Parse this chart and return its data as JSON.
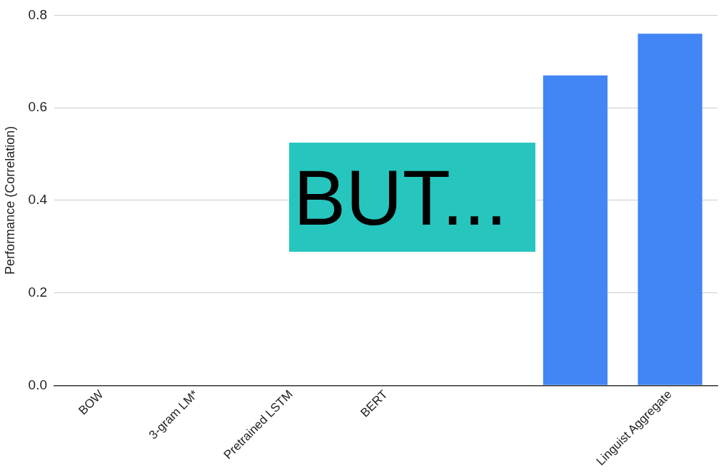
{
  "chart_data": {
    "type": "bar",
    "ylabel": "Performance (Correlation)",
    "categories": [
      "BOW",
      "3-gram LM*",
      "Pretrained LSTM",
      "BERT",
      null,
      null,
      "Linguist Aggregate"
    ],
    "values": [
      0,
      0,
      0,
      0,
      0,
      0.67,
      0.76
    ],
    "color": "#4285f4",
    "ylim": [
      0,
      0.8
    ],
    "yticks": [
      {
        "value": 0,
        "label": "0.0"
      },
      {
        "value": 0.2,
        "label": "0.2"
      },
      {
        "value": 0.4,
        "label": "0.4"
      },
      {
        "value": 0.6,
        "label": "0.6"
      },
      {
        "value": 0.8,
        "label": "0.8"
      }
    ],
    "grid": "y",
    "legend": false,
    "annotations": [
      "BUT..."
    ]
  }
}
